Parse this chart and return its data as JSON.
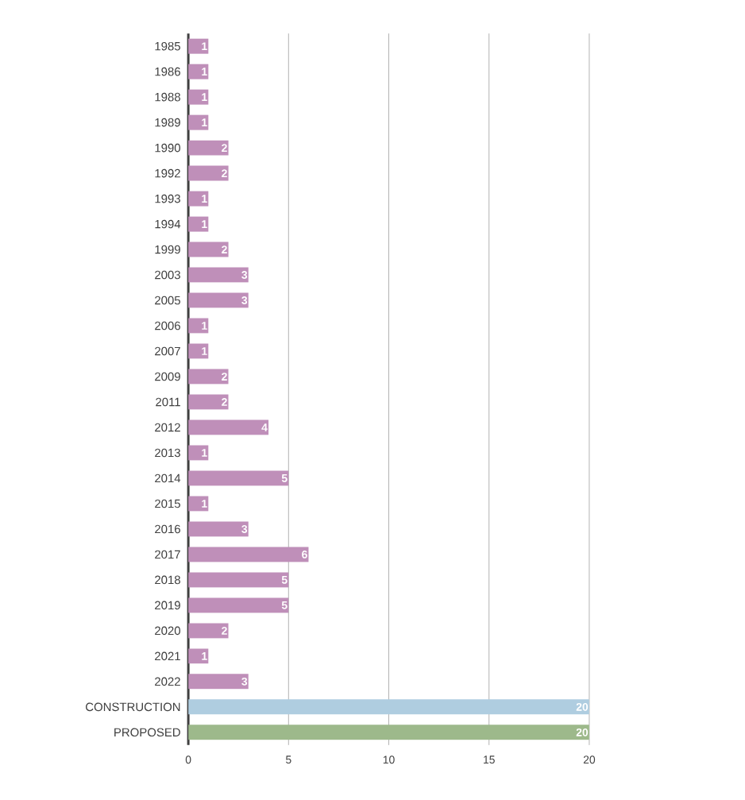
{
  "chart_data": {
    "type": "bar",
    "orientation": "horizontal",
    "categories": [
      "1985",
      "1986",
      "1988",
      "1989",
      "1990",
      "1992",
      "1993",
      "1994",
      "1999",
      "2003",
      "2005",
      "2006",
      "2007",
      "2009",
      "2011",
      "2012",
      "2013",
      "2014",
      "2015",
      "2016",
      "2017",
      "2018",
      "2019",
      "2020",
      "2021",
      "2022",
      "CONSTRUCTION",
      "PROPOSED"
    ],
    "values": [
      1,
      1,
      1,
      1,
      2,
      2,
      1,
      1,
      2,
      3,
      3,
      1,
      1,
      2,
      2,
      4,
      1,
      5,
      1,
      3,
      6,
      5,
      5,
      2,
      1,
      3,
      20,
      20
    ],
    "colors": [
      "#bf8fb9",
      "#bf8fb9",
      "#bf8fb9",
      "#bf8fb9",
      "#bf8fb9",
      "#bf8fb9",
      "#bf8fb9",
      "#bf8fb9",
      "#bf8fb9",
      "#bf8fb9",
      "#bf8fb9",
      "#bf8fb9",
      "#bf8fb9",
      "#bf8fb9",
      "#bf8fb9",
      "#bf8fb9",
      "#bf8fb9",
      "#bf8fb9",
      "#bf8fb9",
      "#bf8fb9",
      "#bf8fb9",
      "#bf8fb9",
      "#bf8fb9",
      "#bf8fb9",
      "#bf8fb9",
      "#bf8fb9",
      "#afcde0",
      "#9db98b"
    ],
    "xlim": [
      0,
      20
    ],
    "xticks": [
      0,
      5,
      10,
      15,
      20
    ],
    "grid": "x",
    "data_labels": true
  }
}
